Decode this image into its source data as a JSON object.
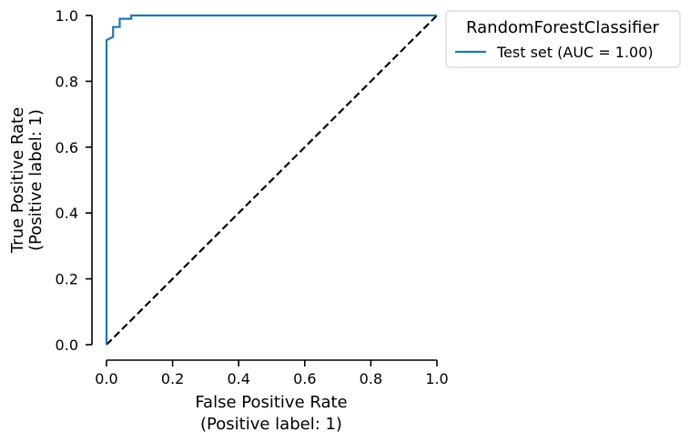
{
  "chart_data": {
    "type": "line",
    "xlabel": [
      "False Positive Rate",
      "(Positive label: 1)"
    ],
    "ylabel": [
      "True Positive Rate",
      "(Positive label: 1)"
    ],
    "xlim": [
      0,
      1
    ],
    "ylim": [
      0,
      1
    ],
    "xticks": [
      "0.0",
      "0.2",
      "0.4",
      "0.6",
      "0.8",
      "1.0"
    ],
    "yticks": [
      "0.0",
      "0.2",
      "0.4",
      "0.6",
      "0.8",
      "1.0"
    ],
    "grid": false,
    "legend": {
      "title": "RandomForestClassifier",
      "placement": "outside upper-right",
      "entries": [
        "Test set (AUC = 1.00)"
      ]
    },
    "series": [
      {
        "name": "Test set (AUC = 1.00)",
        "color": "#1f77b4",
        "style": "solid",
        "x": [
          0.0,
          0.0,
          0.0,
          0.02,
          0.02,
          0.02,
          0.04,
          0.04,
          0.04,
          0.075,
          0.075,
          1.0
        ],
        "y": [
          0.0,
          0.5,
          0.925,
          0.935,
          0.95,
          0.965,
          0.965,
          0.98,
          0.99,
          0.99,
          1.0,
          1.0
        ]
      },
      {
        "color": "#000000",
        "style": "dashed",
        "x": [
          0.0,
          1.0
        ],
        "y": [
          0.0,
          1.0
        ]
      }
    ]
  }
}
